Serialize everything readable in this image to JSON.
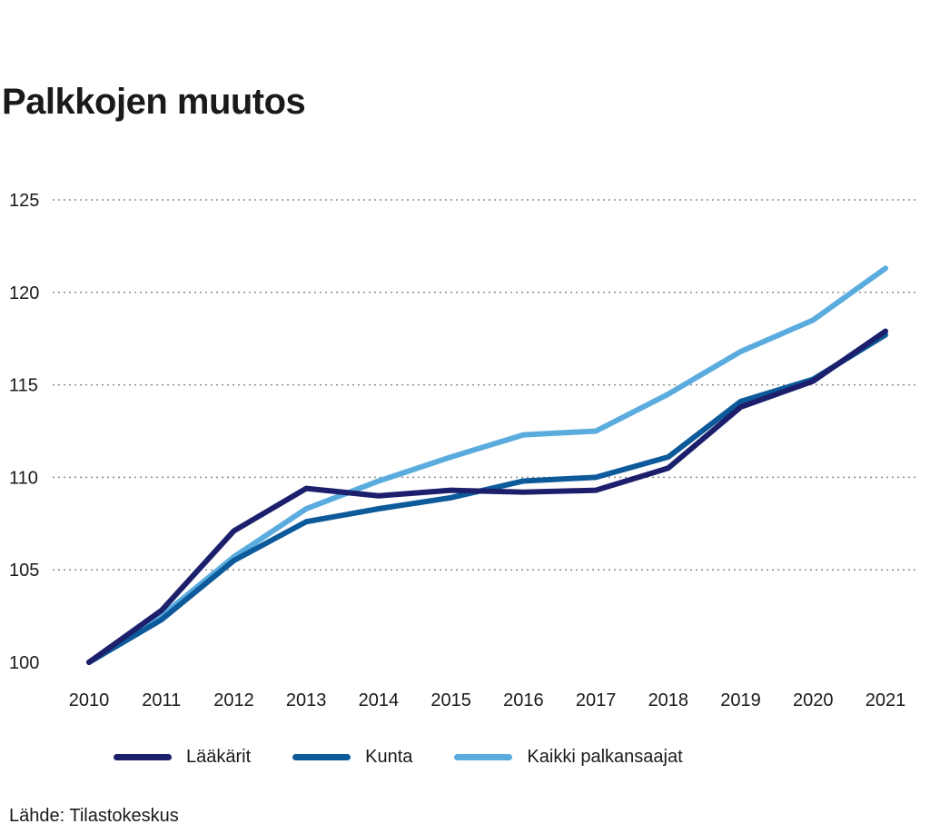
{
  "chart_data": {
    "type": "line",
    "title": "Palkkojen muutos",
    "categories": [
      "2010",
      "2011",
      "2012",
      "2013",
      "2014",
      "2015",
      "2016",
      "2017",
      "2018",
      "2019",
      "2020",
      "2021"
    ],
    "ylim": [
      100,
      125
    ],
    "yticks": [
      100,
      105,
      110,
      115,
      120,
      125
    ],
    "grid": true,
    "legend_position": "bottom",
    "series": [
      {
        "name": "Lääkärit",
        "color": "#1c1f6b",
        "values": [
          100,
          102.8,
          107.1,
          109.4,
          109.0,
          109.3,
          109.2,
          109.3,
          110.5,
          113.8,
          115.2,
          117.9
        ]
      },
      {
        "name": "Kunta",
        "color": "#0d5a9a",
        "values": [
          100,
          102.3,
          105.5,
          107.6,
          108.3,
          108.9,
          109.8,
          110.0,
          111.1,
          114.1,
          115.3,
          117.7
        ]
      },
      {
        "name": "Kaikki palkansaajat",
        "color": "#5aabde",
        "values": [
          100,
          102.5,
          105.7,
          108.3,
          109.8,
          111.1,
          112.3,
          112.5,
          114.5,
          116.8,
          118.5,
          121.3
        ]
      }
    ]
  },
  "source": "Lähde: Tilastokeskus"
}
